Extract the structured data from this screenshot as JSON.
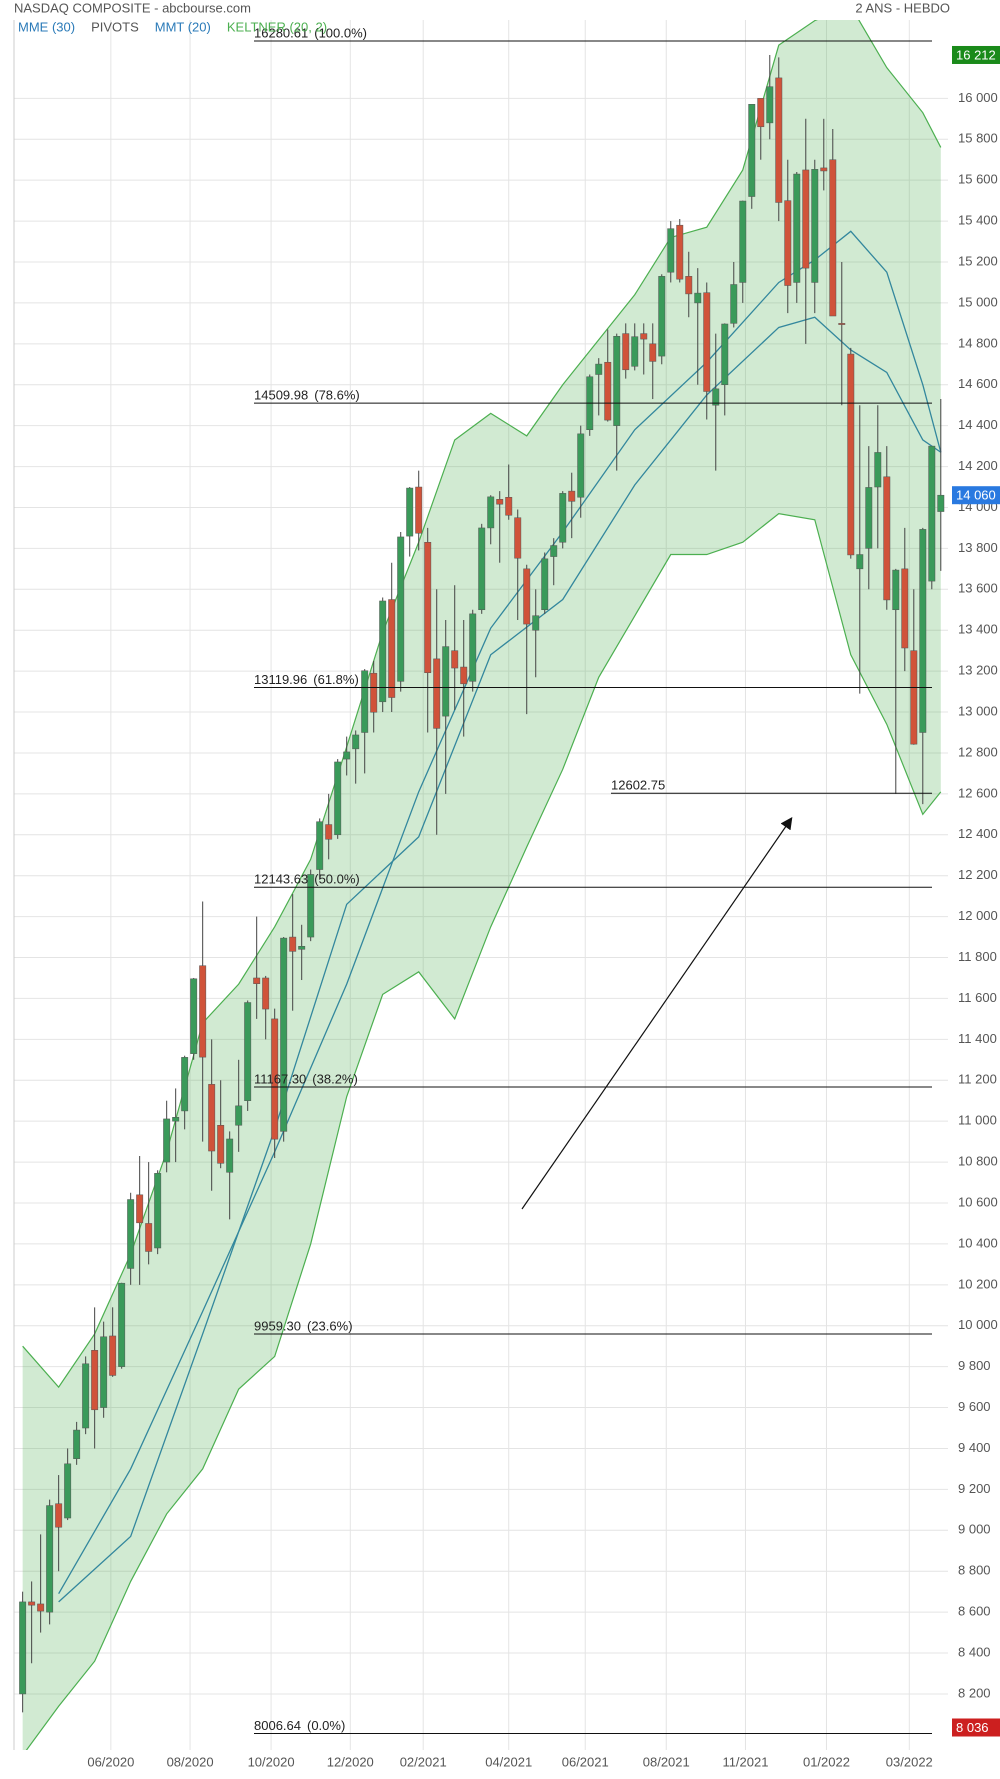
{
  "chart_data": {
    "type": "candlestick",
    "title": "NASDAQ COMPOSITE - abcbourse.com",
    "subtitle": "2 ANS - HEBDO",
    "up_color": "#3a9a5a",
    "down_color": "#d0533a",
    "grid": true,
    "open": [
      8200,
      8650,
      8640,
      8600,
      9130,
      9060,
      9350,
      9500,
      9880,
      9600,
      9950,
      9800,
      10280,
      10640,
      10500,
      10380,
      10800,
      11000,
      11050,
      11330,
      11760,
      11180,
      10980,
      10750,
      10980,
      11100,
      11700,
      11700,
      11500,
      10950,
      11900,
      11840,
      11900,
      12230,
      12450,
      12400,
      12770,
      12820,
      12900,
      13190,
      13050,
      13550,
      13150,
      13860,
      14100,
      13830,
      13260,
      12980,
      13300,
      13220,
      13150,
      13500,
      13900,
      14040,
      14050,
      13950,
      13700,
      13400,
      13500,
      13760,
      13830,
      14080,
      14050,
      14380,
      14650,
      14710,
      14400,
      14850,
      14690,
      14850,
      14800,
      14740,
      15150,
      15380,
      15130,
      15000,
      15050,
      14500,
      14600,
      14900,
      15100,
      15520,
      16000,
      15880,
      16100,
      15500,
      15100,
      15650,
      15100,
      15660,
      15700,
      14900,
      14750,
      13700,
      13800,
      14100,
      14150,
      13500,
      13700,
      13300,
      12900,
      13640,
      13980
    ],
    "high": [
      8700,
      8750,
      8980,
      9150,
      9270,
      9400,
      9530,
      9850,
      10090,
      10020,
      10090,
      10210,
      10650,
      10830,
      10800,
      10760,
      11100,
      11160,
      11320,
      11700,
      12074,
      11400,
      11200,
      10950,
      11300,
      11590,
      12000,
      11710,
      11550,
      11900,
      12110,
      11960,
      12230,
      12480,
      12600,
      12770,
      12880,
      12910,
      13210,
      13250,
      13560,
      13730,
      13880,
      14100,
      14180,
      13900,
      13600,
      13450,
      13620,
      13450,
      13500,
      13920,
      14060,
      14080,
      14210,
      13990,
      13720,
      13600,
      13780,
      13850,
      14080,
      14170,
      14400,
      14650,
      14730,
      14870,
      14850,
      14900,
      14900,
      14900,
      14900,
      15140,
      15400,
      15410,
      15250,
      15170,
      15100,
      14850,
      14900,
      15200,
      15500,
      15970,
      16000,
      16212,
      16200,
      15700,
      15640,
      15900,
      15700,
      15900,
      15850,
      15200,
      14780,
      14500,
      14300,
      14500,
      14300,
      13700,
      13900,
      13600,
      13900,
      14300,
      14530
    ],
    "low": [
      8110,
      8350,
      8500,
      8540,
      8800,
      9050,
      9320,
      9470,
      9400,
      9550,
      9750,
      9790,
      10200,
      10200,
      10300,
      10350,
      10750,
      10800,
      10960,
      11300,
      10900,
      10660,
      10770,
      10520,
      10850,
      11050,
      11500,
      11400,
      10820,
      10900,
      11540,
      11690,
      11880,
      12180,
      12280,
      12380,
      12690,
      12650,
      12700,
      12900,
      13000,
      13000,
      13100,
      13760,
      13790,
      12900,
      12400,
      12600,
      13010,
      12880,
      13100,
      13480,
      13820,
      13730,
      13940,
      13450,
      12990,
      13170,
      13480,
      13620,
      13800,
      13850,
      13950,
      14350,
      14450,
      14420,
      14180,
      14630,
      14670,
      14650,
      14530,
      14700,
      15100,
      15100,
      14930,
      14600,
      14430,
      14180,
      14450,
      14880,
      15000,
      15460,
      15700,
      15800,
      15400,
      14950,
      15000,
      14800,
      14950,
      15550,
      14950,
      14500,
      13750,
      13090,
      13600,
      13800,
      13500,
      12600,
      13200,
      12840,
      12550,
      13600,
      13690
    ],
    "close": [
      8650,
      8634,
      8605,
      9121,
      9015,
      9325,
      9490,
      9814,
      9589,
      9946,
      9757,
      10208,
      10617,
      10503,
      10363,
      10745,
      11011,
      11019,
      11312,
      11696,
      11313,
      10854,
      10794,
      10913,
      11075,
      11580,
      11672,
      11548,
      10912,
      11895,
      11830,
      11855,
      12206,
      12464,
      12378,
      12756,
      12805,
      12888,
      13202,
      12999,
      13543,
      13071,
      13856,
      14095,
      13874,
      13192,
      12920,
      13320,
      13215,
      13138,
      13480,
      13900,
      14052,
      14016,
      13962,
      13752,
      13430,
      13471,
      13749,
      13814,
      14069,
      14030,
      14360,
      14639,
      14701,
      14427,
      14837,
      14673,
      14835,
      14823,
      14714,
      15130,
      15363,
      15116,
      15044,
      15048,
      14567,
      14580,
      14897,
      15090,
      15498,
      15971,
      15861,
      16057,
      15491,
      15085,
      15630,
      15170,
      15653,
      15645,
      14936,
      14894,
      13768,
      13770,
      14098,
      14269,
      13548,
      13694,
      13313,
      12843,
      13893,
      14300,
      14060
    ],
    "xlim": [
      -0.96,
      102.8
    ],
    "ylim": [
      7926,
      16383
    ],
    "xticks": [
      {
        "value": 9.8,
        "label": "06/2020"
      },
      {
        "value": 18.6,
        "label": "08/2020"
      },
      {
        "value": 27.6,
        "label": "10/2020"
      },
      {
        "value": 36.4,
        "label": "12/2020"
      },
      {
        "value": 44.5,
        "label": "02/2021"
      },
      {
        "value": 54,
        "label": "04/2021"
      },
      {
        "value": 62.5,
        "label": "06/2021"
      },
      {
        "value": 71.5,
        "label": "08/2021"
      },
      {
        "value": 80.3,
        "label": "11/2021"
      },
      {
        "value": 89.3,
        "label": "01/2022"
      },
      {
        "value": 98.5,
        "label": "03/2022"
      }
    ],
    "yticks": [
      {
        "value": 8200,
        "label": "8 200"
      },
      {
        "value": 8400,
        "label": "8 400"
      },
      {
        "value": 8600,
        "label": "8 600"
      },
      {
        "value": 8800,
        "label": "8 800"
      },
      {
        "value": 9000,
        "label": "9 000"
      },
      {
        "value": 9200,
        "label": "9 200"
      },
      {
        "value": 9400,
        "label": "9 400"
      },
      {
        "value": 9600,
        "label": "9 600"
      },
      {
        "value": 9800,
        "label": "9 800"
      },
      {
        "value": 10000,
        "label": "10 000"
      },
      {
        "value": 10200,
        "label": "10 200"
      },
      {
        "value": 10400,
        "label": "10 400"
      },
      {
        "value": 10600,
        "label": "10 600"
      },
      {
        "value": 10800,
        "label": "10 800"
      },
      {
        "value": 11000,
        "label": "11 000"
      },
      {
        "value": 11200,
        "label": "11 200"
      },
      {
        "value": 11400,
        "label": "11 400"
      },
      {
        "value": 11600,
        "label": "11 600"
      },
      {
        "value": 11800,
        "label": "11 800"
      },
      {
        "value": 12000,
        "label": "12 000"
      },
      {
        "value": 12200,
        "label": "12 200"
      },
      {
        "value": 12400,
        "label": "12 400"
      },
      {
        "value": 12600,
        "label": "12 600"
      },
      {
        "value": 12800,
        "label": "12 800"
      },
      {
        "value": 13000,
        "label": "13 000"
      },
      {
        "value": 13200,
        "label": "13 200"
      },
      {
        "value": 13400,
        "label": "13 400"
      },
      {
        "value": 13600,
        "label": "13 600"
      },
      {
        "value": 13800,
        "label": "13 800"
      },
      {
        "value": 14000,
        "label": "14 000"
      },
      {
        "value": 14200,
        "label": "14 200"
      },
      {
        "value": 14400,
        "label": "14 400"
      },
      {
        "value": 14600,
        "label": "14 600"
      },
      {
        "value": 14800,
        "label": "14 800"
      },
      {
        "value": 15000,
        "label": "15 000"
      },
      {
        "value": 15200,
        "label": "15 200"
      },
      {
        "value": 15400,
        "label": "15 400"
      },
      {
        "value": 15600,
        "label": "15 600"
      },
      {
        "value": 15800,
        "label": "15 800"
      },
      {
        "value": 16000,
        "label": "16 000"
      }
    ],
    "indicators": [
      {
        "name": "MME (30)",
        "color": "#2a7ab8",
        "x": [
          4,
          12,
          20,
          28,
          36,
          44,
          52,
          60,
          68,
          76,
          84,
          88,
          92,
          96,
          100,
          102
        ],
        "values": [
          8690,
          9300,
          10070,
          10850,
          11670,
          12610,
          13410,
          13880,
          14380,
          14710,
          15100,
          15210,
          15350,
          15150,
          14600,
          14270
        ]
      },
      {
        "name": "PIVOTS",
        "color": "#555555"
      },
      {
        "name": "MMT (20)",
        "color": "#2a7ab8",
        "x": [
          4,
          12,
          20,
          28,
          36,
          44,
          52,
          60,
          68,
          76,
          84,
          88,
          92,
          96,
          100,
          102
        ],
        "values": [
          8650,
          8970,
          9960,
          10960,
          12060,
          12390,
          13280,
          13550,
          14110,
          14550,
          14880,
          14930,
          14770,
          14660,
          14330,
          14270
        ]
      },
      {
        "name": "KELTNER (20, 2)",
        "color": "#4caf50",
        "x": [
          0,
          4,
          8,
          12,
          16,
          20,
          24,
          28,
          32,
          36,
          40,
          44,
          48,
          52,
          56,
          60,
          64,
          68,
          72,
          76,
          80,
          84,
          88,
          92,
          96,
          100,
          102
        ],
        "upper": [
          9900,
          9700,
          9960,
          10350,
          10850,
          11480,
          11670,
          11950,
          12280,
          12830,
          13390,
          13830,
          14330,
          14460,
          14350,
          14600,
          14820,
          15040,
          15320,
          15370,
          15650,
          16260,
          16380,
          16450,
          16150,
          15930,
          15760
        ],
        "lower": [
          7900,
          8140,
          8360,
          8750,
          9080,
          9300,
          9690,
          9850,
          10400,
          11120,
          11620,
          11730,
          11500,
          11950,
          12340,
          12720,
          13170,
          13470,
          13770,
          13770,
          13830,
          13970,
          13940,
          13280,
          12940,
          12500,
          12610
        ]
      }
    ],
    "levels": [
      {
        "value": 16280.61,
        "pct": "(100.0%)"
      },
      {
        "value": 14509.98,
        "pct": "(78.6%)"
      },
      {
        "value": 13119.96,
        "pct": "(61.8%)"
      },
      {
        "value": 12143.63,
        "pct": "(50.0%)"
      },
      {
        "value": 11167.3,
        "label": "11167.30",
        "pct": "(38.2%)"
      },
      {
        "value": 9959.3,
        "label": "9959.30",
        "pct": "(23.6%)"
      },
      {
        "value": 8006.64,
        "pct": "(0.0%)"
      },
      {
        "value": 12602.75
      }
    ],
    "price_tags": [
      {
        "value": 16212,
        "label": "16 212",
        "color": "#1a8a1a"
      },
      {
        "value": 14060,
        "label": "14 060",
        "color": "#2979e0"
      },
      {
        "value": 8036,
        "label": "8 036",
        "color": "#cc1f1f"
      }
    ]
  }
}
